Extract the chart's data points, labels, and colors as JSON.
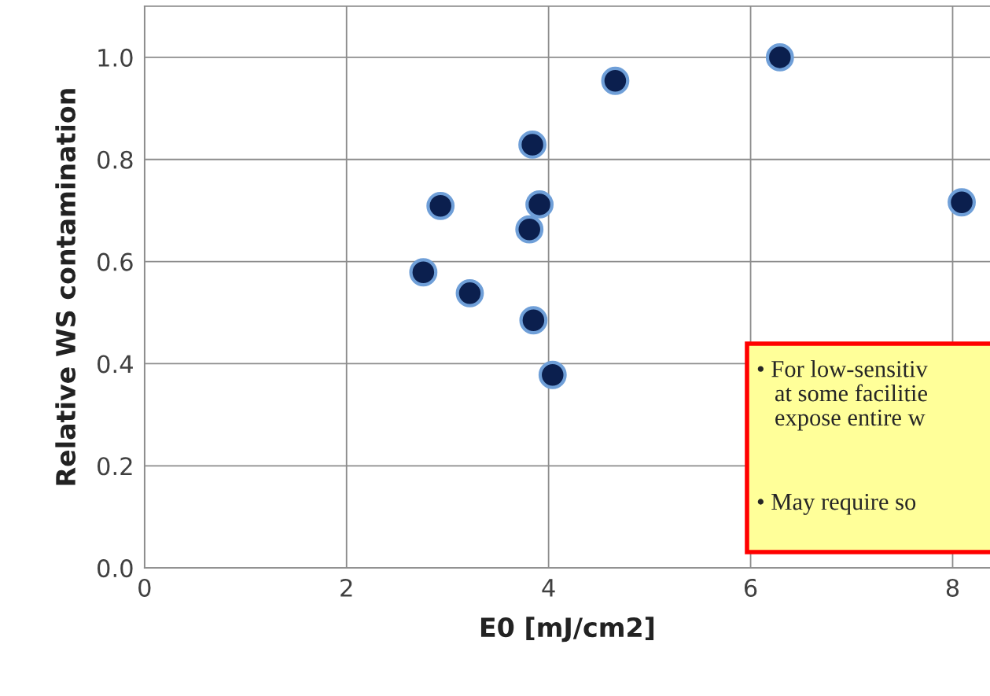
{
  "chart_data": {
    "type": "scatter",
    "xlabel": "E0 [mJ/cm2]",
    "ylabel": "Relative WS contamination",
    "x": [
      6.29,
      4.66,
      3.84,
      2.93,
      3.91,
      3.81,
      2.76,
      3.22,
      3.85,
      4.04,
      8.09
    ],
    "series": [
      {
        "color": "#0b1f4e",
        "values": [
          1.0,
          0.954,
          0.829,
          0.709,
          0.712,
          0.663,
          0.579,
          0.538,
          0.485,
          0.378,
          0.716
        ]
      }
    ],
    "marker": "circle",
    "grid": true,
    "xlim": [
      0,
      8.37
    ],
    "ylim": [
      0,
      1.1
    ],
    "xticks": [
      0,
      2,
      4,
      6,
      8
    ],
    "yticks": [
      {
        "value": 0,
        "label": "0.0"
      },
      {
        "value": 0.2,
        "label": "0.2"
      },
      {
        "value": 0.4,
        "label": "0.4"
      },
      {
        "value": 0.6,
        "label": "0.6"
      },
      {
        "value": 0.8,
        "label": "0.8"
      },
      {
        "value": 1.0,
        "label": "1.0"
      }
    ],
    "annotations": [
      "• For low-sensitiv\n   at some facilitie\n   expose entire w",
      "• May require so"
    ]
  }
}
